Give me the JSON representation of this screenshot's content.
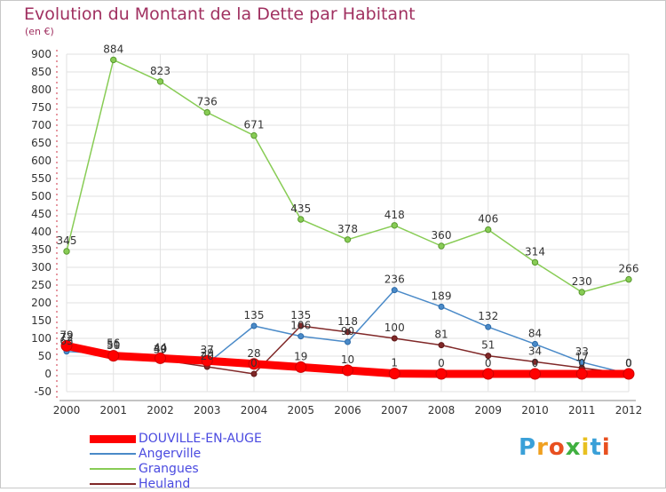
{
  "header": {
    "title": "Evolution du Montant de la Dette par Habitant",
    "unit": "(en €)"
  },
  "logo": {
    "text": "Proxiti",
    "colors": [
      "#3aa0d8",
      "#f0a020",
      "#e85020",
      "#40b040",
      "#e8c020",
      "#3aa0d8",
      "#e85020"
    ]
  },
  "chart_data": {
    "type": "line",
    "title": "Evolution du Montant de la Dette par Habitant",
    "ylabel": "(en €)",
    "xlabel": "",
    "x": [
      "2000",
      "2001",
      "2002",
      "2003",
      "2004",
      "2005",
      "2006",
      "2007",
      "2008",
      "2009",
      "2010",
      "2011",
      "2012"
    ],
    "ylim": [
      -50,
      900
    ],
    "yticks": [
      -50,
      0,
      50,
      100,
      150,
      200,
      250,
      300,
      350,
      400,
      450,
      500,
      550,
      600,
      650,
      700,
      750,
      800,
      850,
      900
    ],
    "grid": true,
    "legend_position": "bottom-left",
    "series": [
      {
        "name": "DOUVILLE-EN-AUGE",
        "color": "#ff0000",
        "values": [
          79,
          51,
          44,
          37,
          28,
          19,
          10,
          1,
          0,
          0,
          0,
          0,
          0
        ],
        "labels": [
          "79",
          "51",
          "44",
          "37",
          "28",
          "19",
          "10",
          "1",
          "0",
          "0",
          "0",
          "0",
          "0"
        ]
      },
      {
        "name": "Angerville",
        "color": "#4a8ac8",
        "values": [
          63,
          56,
          39,
          29,
          135,
          106,
          90,
          236,
          189,
          132,
          84,
          33,
          0
        ],
        "labels": [
          "63",
          "56",
          "39",
          "29",
          "135",
          "106",
          "90",
          "236",
          "189",
          "132",
          "84",
          "33",
          "0"
        ]
      },
      {
        "name": "Grangues",
        "color": "#88cc55",
        "values": [
          345,
          884,
          823,
          736,
          671,
          435,
          378,
          418,
          360,
          406,
          314,
          230,
          266
        ],
        "labels": [
          "345",
          "884",
          "823",
          "736",
          "671",
          "435",
          "378",
          "418",
          "360",
          "406",
          "314",
          "230",
          "266"
        ]
      },
      {
        "name": "Heuland",
        "color": "#802828",
        "values": [
          72,
          50,
          40,
          20,
          0,
          135,
          118,
          100,
          81,
          51,
          34,
          17,
          0
        ],
        "labels": [
          "72",
          "50",
          "40",
          "20",
          "0",
          "135",
          "118",
          "100",
          "81",
          "51",
          "34",
          "17",
          "0"
        ]
      }
    ]
  }
}
